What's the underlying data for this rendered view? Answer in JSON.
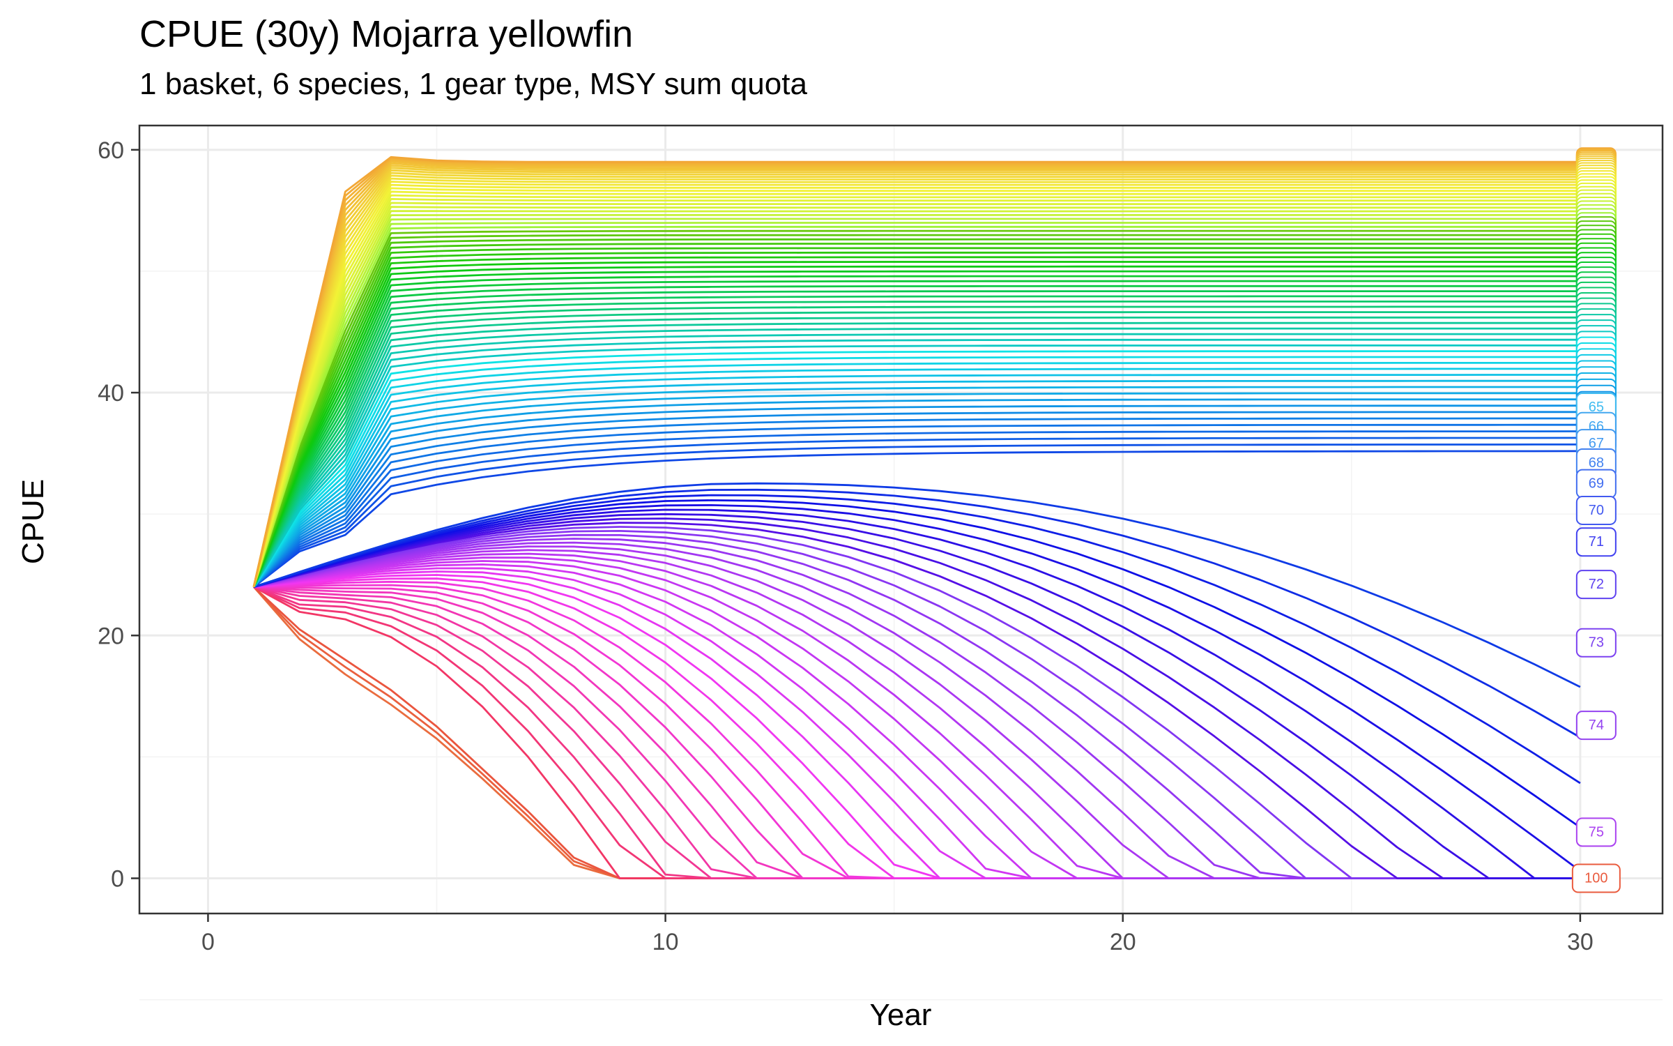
{
  "chart_data": {
    "type": "line",
    "title": "CPUE (30y) Mojarra yellowfin",
    "subtitle": "1 basket, 6 species, 1 gear type, MSY sum quota",
    "xlabel": "Year",
    "ylabel": "CPUE",
    "xlim": [
      -1.5,
      31.8
    ],
    "ylim": [
      -2.9,
      62
    ],
    "xticks": [
      0,
      10,
      20,
      30
    ],
    "yticks": [
      0,
      20,
      40,
      60
    ],
    "grid": true,
    "legend": "none",
    "x": [
      1,
      30
    ],
    "series": [
      {
        "name": "65",
        "final_value": 38.8
      },
      {
        "name": "66",
        "final_value": 37.2
      },
      {
        "name": "67",
        "final_value": 35.8
      },
      {
        "name": "68",
        "final_value": 34.2
      },
      {
        "name": "69",
        "final_value": 32.5
      },
      {
        "name": "70",
        "final_value": 30.3
      },
      {
        "name": "71",
        "final_value": 27.7
      },
      {
        "name": "72",
        "final_value": 24.2
      },
      {
        "name": "73",
        "final_value": 19.4
      },
      {
        "name": "74",
        "final_value": 12.6
      },
      {
        "name": "75",
        "final_value": 3.8
      },
      {
        "name": "100",
        "final_value": 0
      }
    ]
  }
}
